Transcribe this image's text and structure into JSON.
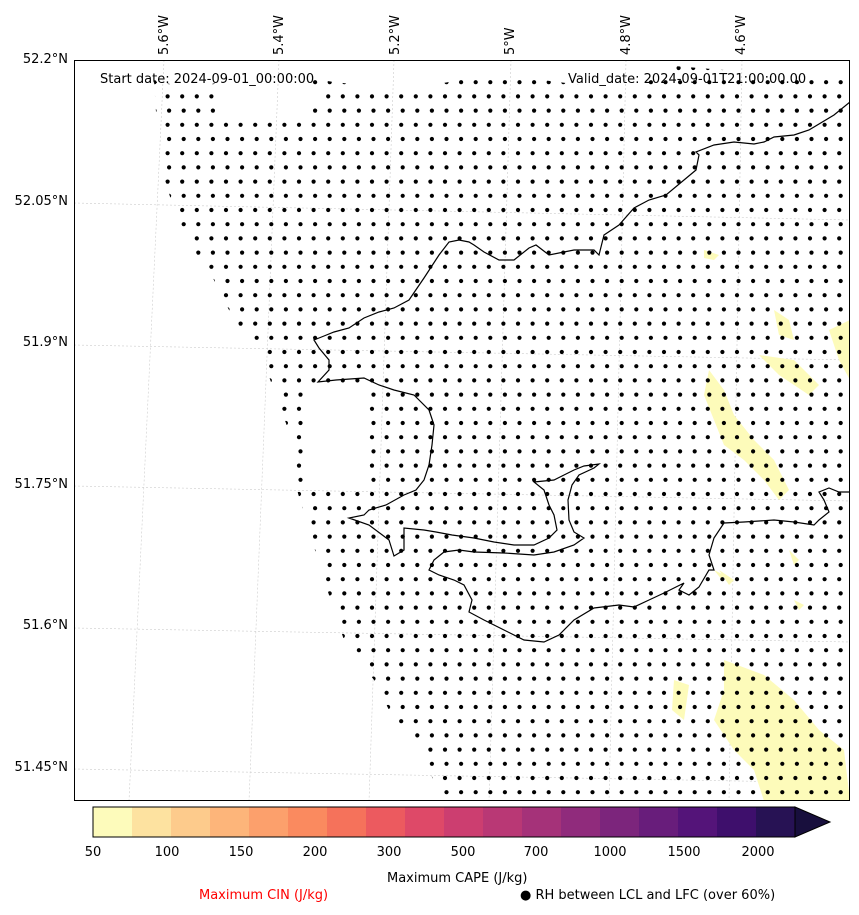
{
  "map": {
    "start_date": "Start date: 2024-09-01_00:00:00",
    "valid_date": "Valid_date: 2024-09-01T21:00:00.00",
    "lon_labels": [
      "5.6°W",
      "5.4°W",
      "5.2°W",
      "5°W",
      "4.8°W",
      "4.6°W"
    ],
    "lat_labels": [
      "52.2°N",
      "52.05°N",
      "51.9°N",
      "51.75°N",
      "51.6°N",
      "51.45°N"
    ],
    "colors": {
      "coastline": "#000000",
      "dots": "#000000",
      "cape_fill": "#fdfbba",
      "gridlines": "#cccccc"
    }
  },
  "colorbar": {
    "label": "Maximum CAPE (J/kg)",
    "ticks": [
      "50",
      "100",
      "150",
      "200",
      "300",
      "500",
      "700",
      "1000",
      "1500",
      "2000"
    ],
    "colors": [
      "#fdfbbb",
      "#fde2a0",
      "#fdcb8c",
      "#fdb57a",
      "#fca06c",
      "#fa8a5f",
      "#f5725b",
      "#ec5a5f",
      "#de4968",
      "#cc3e70",
      "#b93875",
      "#a53279",
      "#902b7c",
      "#7c257c",
      "#681d7b",
      "#541479",
      "#3e0f6c",
      "#271254",
      "#180f3d"
    ]
  },
  "legend": {
    "cin_label": "Maximum CIN (J/kg)",
    "cin_color": "#ff0000",
    "rh_label": "● RH between LCL and LFC (over 60%)"
  }
}
